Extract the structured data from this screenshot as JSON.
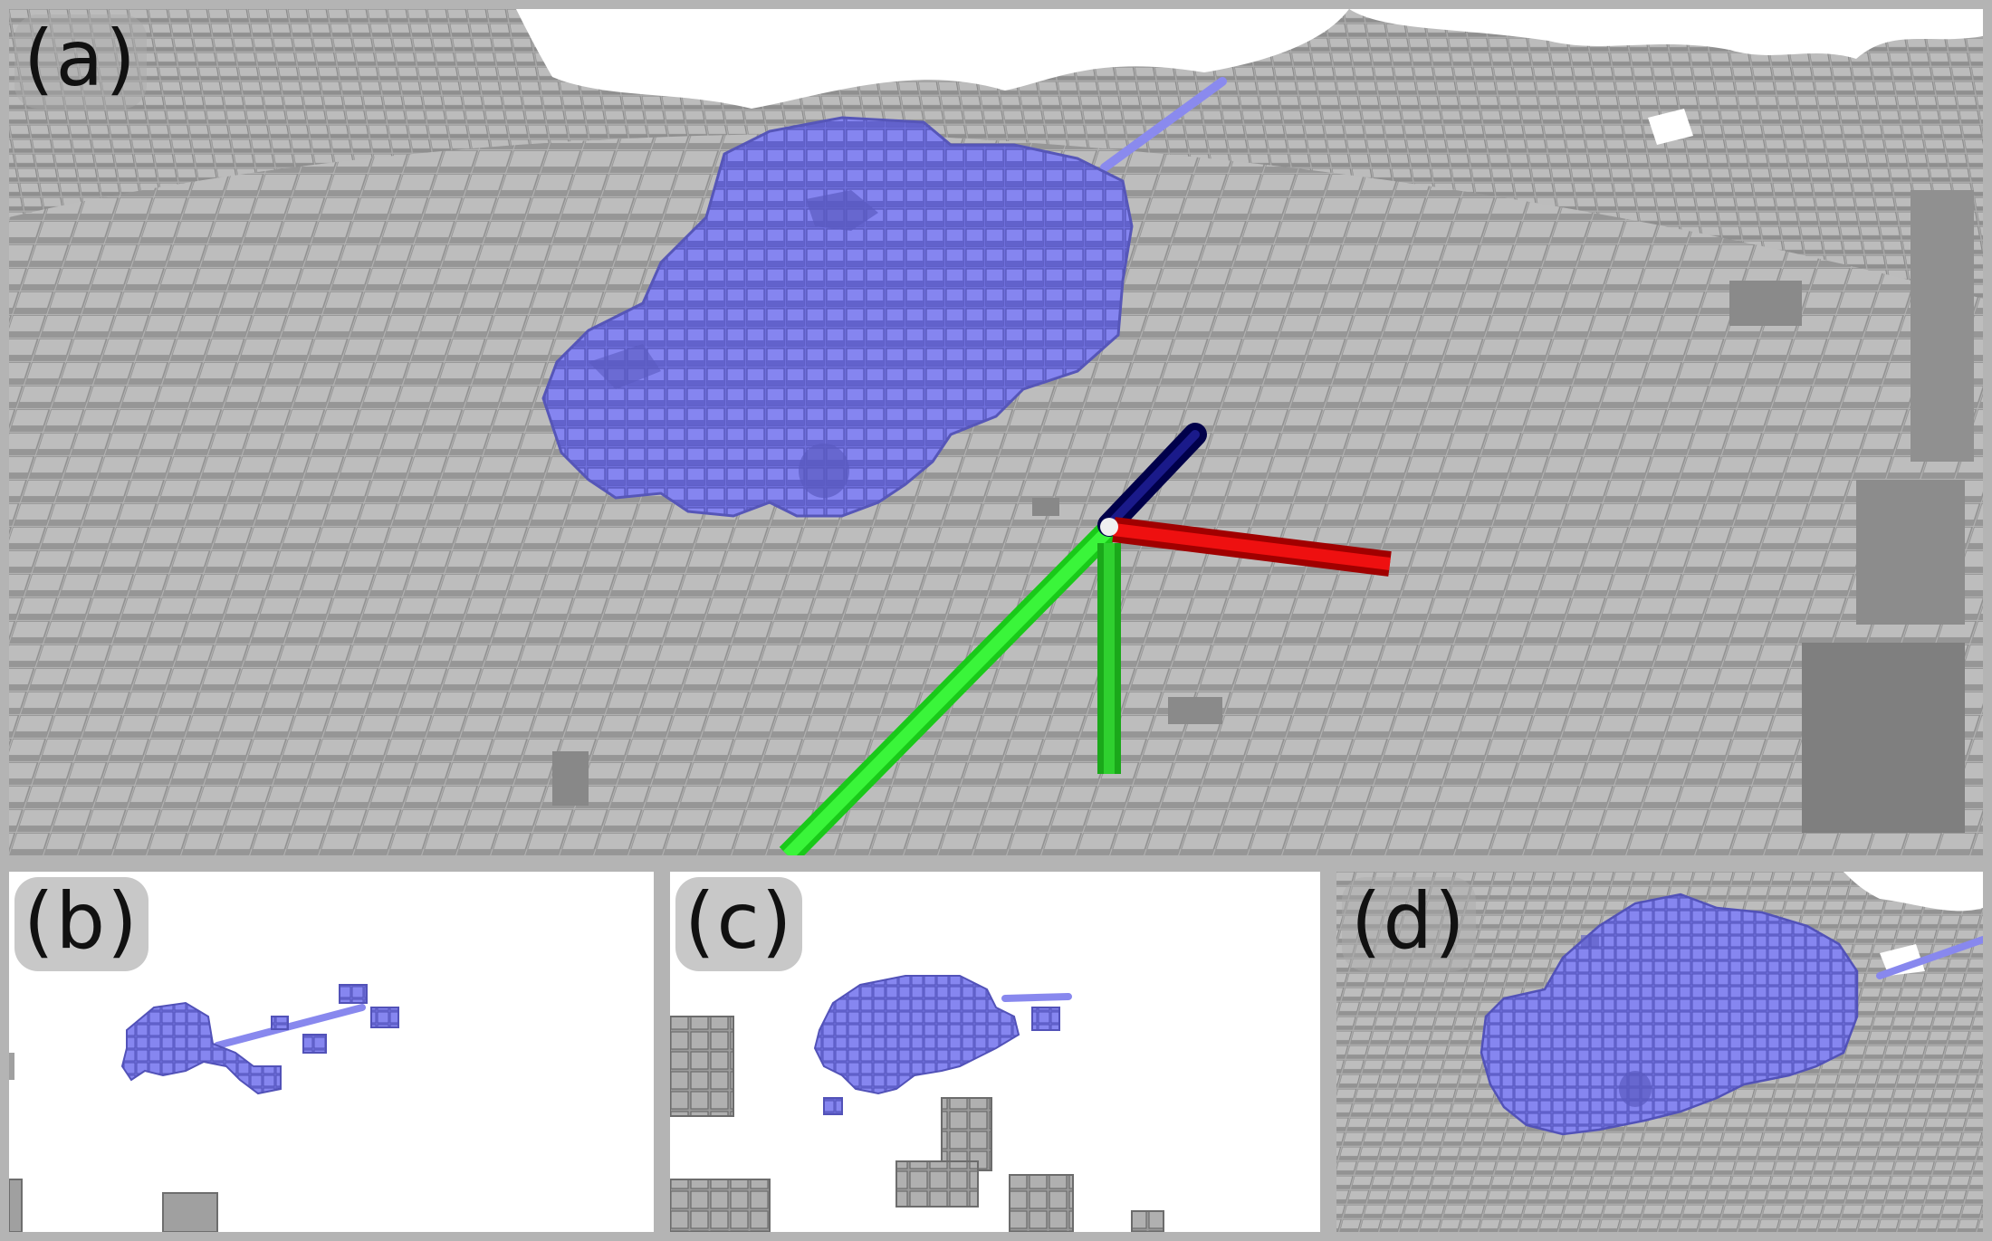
{
  "panels": {
    "a": {
      "label": "(a)"
    },
    "b": {
      "label": "(b)"
    },
    "c": {
      "label": "(c)"
    },
    "d": {
      "label": "(d)"
    }
  },
  "colors": {
    "frame": "#b4b4b4",
    "voxel_gray": "#a8a8a8",
    "voxel_blue": "#7a7ae6",
    "axis_x": "#e00000",
    "axis_y": "#22ee22",
    "axis_z": "#00007a",
    "ray": "#8888ee"
  },
  "icons": {
    "coordinate_frame": "xyz-axes-icon"
  }
}
